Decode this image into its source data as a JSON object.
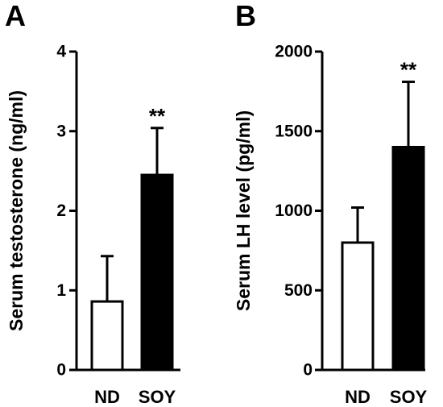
{
  "chart_data": [
    {
      "type": "bar",
      "panel": "A",
      "ylabel": "Serum testosterone (ng/ml)",
      "categories": [
        "ND",
        "SOY"
      ],
      "values": [
        0.86,
        2.45
      ],
      "errors": [
        0.57,
        0.59
      ],
      "bar_fill": [
        "#ffffff",
        "#000000"
      ],
      "annotations": [
        "",
        "**"
      ],
      "ylim": [
        0,
        4
      ],
      "yticks": [
        0,
        1,
        2,
        3,
        4
      ],
      "ytick_labels": [
        "0",
        "1",
        "2",
        "3",
        "4"
      ],
      "grid": false
    },
    {
      "type": "bar",
      "panel": "B",
      "ylabel": "Serum LH level (pg/ml)",
      "categories": [
        "ND",
        "SOY"
      ],
      "values": [
        800,
        1400
      ],
      "errors": [
        220,
        410
      ],
      "bar_fill": [
        "#ffffff",
        "#000000"
      ],
      "annotations": [
        "",
        "**"
      ],
      "ylim": [
        0,
        2000
      ],
      "yticks": [
        0,
        500,
        1000,
        1500,
        2000
      ],
      "ytick_labels": [
        "0",
        "500",
        "1000",
        "1500",
        "2000"
      ],
      "grid": false
    }
  ]
}
